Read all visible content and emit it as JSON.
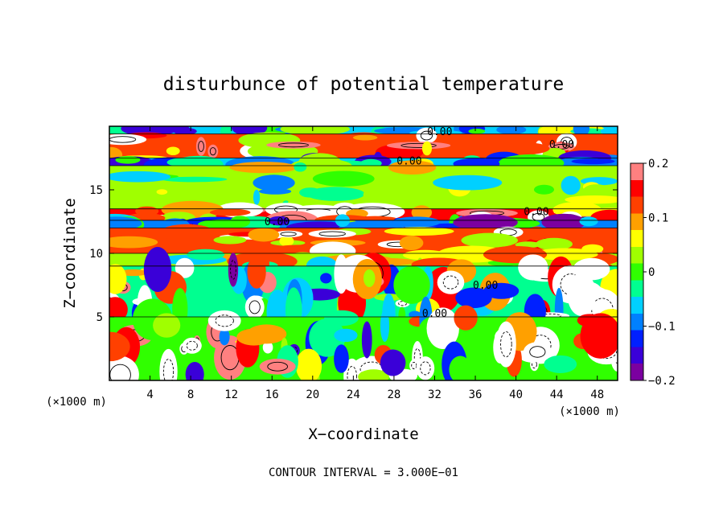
{
  "chart_data": {
    "type": "heatmap",
    "title": "disturbunce of potential temperature",
    "xlabel": "X−coordinate",
    "ylabel": "Z−coordinate",
    "x_unit": "(×1000 m)",
    "y_unit": "(×1000 m)",
    "xlim": [
      0,
      50
    ],
    "ylim": [
      0,
      20
    ],
    "x_ticks": [
      4,
      8,
      12,
      16,
      20,
      24,
      28,
      32,
      36,
      40,
      44,
      48
    ],
    "y_ticks": [
      5,
      10,
      15
    ],
    "colorbar": {
      "range": [
        -0.2,
        0.2
      ],
      "tick_values": [
        0.2,
        0.1,
        0,
        -0.1,
        -0.2
      ],
      "tick_labels": [
        "0.2",
        "0.1",
        "0",
        "−0.1",
        "−0.2"
      ],
      "colors": [
        "#7b00a0",
        "#3a00d8",
        "#0020ff",
        "#0080ff",
        "#00d0ff",
        "#00ff90",
        "#30ff00",
        "#a0ff00",
        "#ffff00",
        "#ffa000",
        "#ff4000",
        "#ff0000",
        "#ff8080"
      ]
    },
    "contour_label": "0.00",
    "footer": "CONTOUR INTERVAL = 3.000E−01",
    "z_layers": [
      {
        "z": [
          19.4,
          20.0
        ],
        "value": -0.05
      },
      {
        "z": [
          17.5,
          19.4
        ],
        "value": 0.13
      },
      {
        "z": [
          16.9,
          17.5
        ],
        "value": -0.05
      },
      {
        "z": [
          13.5,
          16.9
        ],
        "value": 0.02
      },
      {
        "z": [
          12.6,
          13.5
        ],
        "value": 0.15
      },
      {
        "z": [
          12.0,
          12.6
        ],
        "value": -0.08
      },
      {
        "z": [
          10.0,
          12.0
        ],
        "value": 0.12
      },
      {
        "z": [
          9.0,
          10.0
        ],
        "value": 0.03
      },
      {
        "z": [
          5.0,
          9.0
        ],
        "value": -0.02
      },
      {
        "z": [
          0.0,
          5.0
        ],
        "value": 0.0
      }
    ]
  }
}
